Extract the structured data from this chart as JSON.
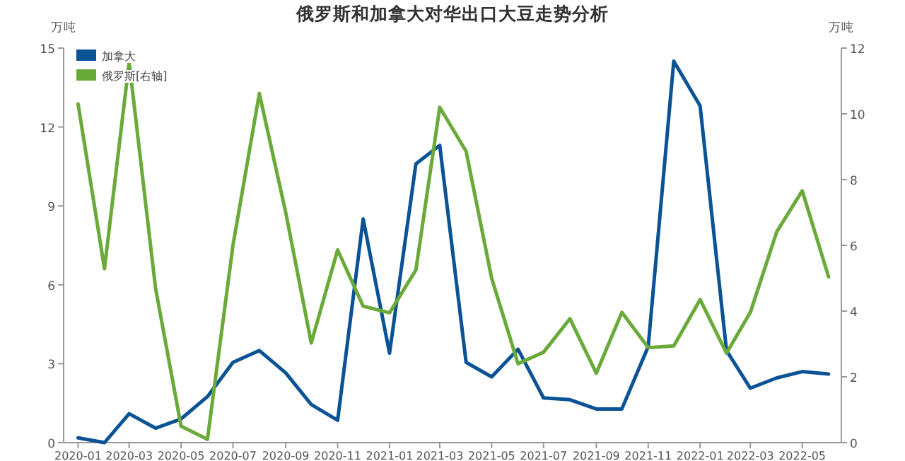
{
  "chart_data": {
    "type": "line",
    "title": "俄罗斯和加拿大对华出口大豆走势分析",
    "ylabel": "万吨",
    "y2label": "万吨",
    "x": [
      "2020-01",
      "2020-02",
      "2020-03",
      "2020-04",
      "2020-05",
      "2020-06",
      "2020-07",
      "2020-08",
      "2020-09",
      "2020-10",
      "2020-11",
      "2020-12",
      "2021-01",
      "2021-02",
      "2021-03",
      "2021-04",
      "2021-05",
      "2021-06",
      "2021-07",
      "2021-08",
      "2021-09",
      "2021-10",
      "2021-11",
      "2021-12",
      "2022-01",
      "2022-02",
      "2022-03",
      "2022-04",
      "2022-05",
      "2022-06"
    ],
    "series": [
      {
        "name": "加拿大",
        "color": "#0b5394",
        "values": [
          0.18,
          0,
          1.1,
          0.55,
          0.9,
          1.75,
          3.05,
          3.5,
          2.65,
          1.45,
          0.85,
          8.5,
          3.4,
          10.6,
          11.3,
          3.05,
          2.5,
          3.55,
          1.7,
          1.63,
          1.28,
          1.28,
          3.65,
          14.5,
          12.8,
          3.5,
          2.07,
          2.46,
          2.7,
          2.61
        ]
      },
      {
        "name": "俄罗斯[右轴]",
        "color": "#6aaa3a",
        "axis": "y2",
        "values": [
          10.3,
          5.29,
          11.57,
          4.7,
          0.5,
          0.1,
          6.0,
          10.62,
          7.0,
          3.03,
          5.86,
          4.15,
          3.95,
          5.25,
          10.2,
          8.86,
          5.0,
          2.4,
          2.75,
          3.77,
          2.11,
          3.96,
          2.89,
          2.94,
          4.35,
          2.72,
          3.96,
          6.41,
          7.66,
          5.04
        ]
      }
    ],
    "xlim": [
      "2019-12-15",
      "2022-06-16"
    ],
    "xticks": [
      "2020-01",
      "2020-03",
      "2020-05",
      "2020-07",
      "2020-09",
      "2020-11",
      "2021-01",
      "2021-03",
      "2021-05",
      "2021-07",
      "2021-09",
      "2021-11",
      "2022-01",
      "2022-03",
      "2022-05"
    ],
    "ylim": [
      0,
      15
    ],
    "yticks": [
      0,
      3,
      6,
      9,
      12,
      15
    ],
    "y2lim": [
      0,
      12
    ],
    "y2ticks": [
      0,
      2,
      4,
      6,
      8,
      10,
      12
    ],
    "grid": false,
    "legend": "top left",
    "marker": "none",
    "line_style": "solid"
  }
}
